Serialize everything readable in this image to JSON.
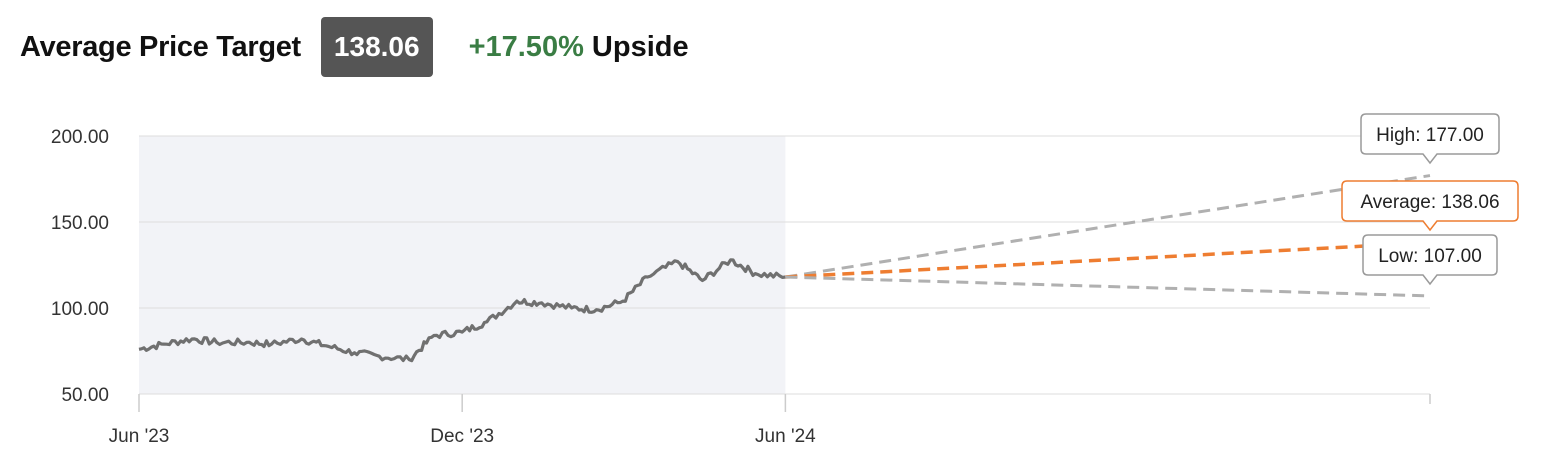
{
  "header": {
    "title": "Average Price Target",
    "price": "138.06",
    "upside_pct": "+17.50%",
    "upside_word": "Upside"
  },
  "colors": {
    "history_line": "#707070",
    "history_band": "#f2f3f7",
    "grid": "#dddddd",
    "average": "#ee7d31",
    "high_low": "#b0b0b0",
    "upside_green": "#3a7d44"
  },
  "chart_data": {
    "type": "line",
    "ylim": [
      50,
      200
    ],
    "y_ticks": [
      {
        "value": 200,
        "label": "200.00"
      },
      {
        "value": 150,
        "label": "150.00"
      },
      {
        "value": 100,
        "label": "100.00"
      },
      {
        "value": 50,
        "label": "50.00"
      }
    ],
    "x_ticks": [
      {
        "date": "2023-06",
        "label": "Jun '23"
      },
      {
        "date": "2023-12",
        "label": "Dec '23"
      },
      {
        "date": "2024-06",
        "label": "Jun '24"
      }
    ],
    "history": {
      "x": [
        "2023-06-01",
        "2023-06-15",
        "2023-07-01",
        "2023-07-15",
        "2023-08-01",
        "2023-08-15",
        "2023-09-01",
        "2023-09-15",
        "2023-10-01",
        "2023-10-15",
        "2023-11-01",
        "2023-11-15",
        "2023-12-01",
        "2023-12-15",
        "2024-01-01",
        "2024-01-15",
        "2024-02-01",
        "2024-02-15",
        "2024-03-01",
        "2024-03-15",
        "2024-04-01",
        "2024-04-15",
        "2024-05-01",
        "2024-05-15",
        "2024-06-01"
      ],
      "y": [
        76,
        79,
        82,
        80,
        80,
        79,
        82,
        78,
        74,
        72,
        70,
        84,
        86,
        92,
        104,
        103,
        100,
        99,
        104,
        118,
        127,
        116,
        128,
        120,
        118
      ]
    },
    "targets": [
      {
        "name": "High",
        "label": "High: 177.00",
        "start_date": "2024-06-01",
        "start_value": 118,
        "end_date": "2025-06-01",
        "end_value": 177.0
      },
      {
        "name": "Average",
        "label": "Average: 138.06",
        "start_date": "2024-06-01",
        "start_value": 118,
        "end_date": "2025-06-01",
        "end_value": 138.06
      },
      {
        "name": "Low",
        "label": "Low: 107.00",
        "start_date": "2024-06-01",
        "start_value": 118,
        "end_date": "2025-06-01",
        "end_value": 107.0
      }
    ]
  }
}
